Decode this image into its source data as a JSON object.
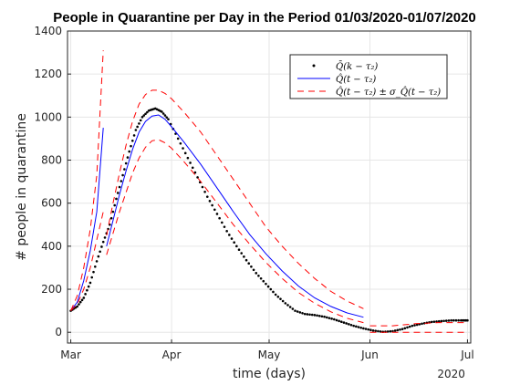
{
  "chart_data": {
    "type": "line",
    "title": "People in Quarantine per Day in the Period 01/03/2020-01/07/2020",
    "xlabel": "time (days)",
    "ylabel": "# people in quarantine",
    "x_ticks": [
      "Mar",
      "Apr",
      "May",
      "Jun",
      "Jul"
    ],
    "x_secondary_label": "2020",
    "x_range": [
      "2020-02-29",
      "2020-07-02"
    ],
    "ylim": [
      -50,
      1400
    ],
    "y_ticks": [
      0,
      200,
      400,
      600,
      800,
      1000,
      1200,
      1400
    ],
    "grid": true,
    "legend_position": "top-right",
    "legend": [
      "Q̄(k − τ₂)",
      "Q̂(t − τ₂)",
      "Q̂(t − τ₂) ± σ_Q̂(t − τ₂)"
    ],
    "series": [
      {
        "style": "dotted-black",
        "x": [
          "2020-03-01",
          "2020-03-03",
          "2020-03-05",
          "2020-03-07",
          "2020-03-09",
          "2020-03-11",
          "2020-03-13",
          "2020-03-15",
          "2020-03-17",
          "2020-03-19",
          "2020-03-21",
          "2020-03-23",
          "2020-03-25",
          "2020-03-27",
          "2020-03-29",
          "2020-03-31",
          "2020-04-03",
          "2020-04-06",
          "2020-04-09",
          "2020-04-12",
          "2020-04-15",
          "2020-04-18",
          "2020-04-21",
          "2020-04-24",
          "2020-04-27",
          "2020-04-30",
          "2020-05-03",
          "2020-05-06",
          "2020-05-09",
          "2020-05-12",
          "2020-05-15",
          "2020-05-18",
          "2020-05-21",
          "2020-05-24",
          "2020-05-27",
          "2020-05-30",
          "2020-06-02",
          "2020-06-05",
          "2020-06-08",
          "2020-06-11",
          "2020-06-14",
          "2020-06-17",
          "2020-06-20",
          "2020-06-23",
          "2020-06-26",
          "2020-06-29",
          "2020-07-01"
        ],
        "y": [
          100,
          120,
          160,
          230,
          330,
          420,
          500,
          620,
          730,
          840,
          940,
          1000,
          1030,
          1040,
          1025,
          990,
          900,
          810,
          720,
          630,
          550,
          470,
          400,
          335,
          275,
          225,
          175,
          135,
          100,
          85,
          80,
          72,
          60,
          45,
          30,
          18,
          8,
          2,
          5,
          15,
          30,
          40,
          48,
          52,
          55,
          55,
          55
        ]
      },
      {
        "style": "solid-blue",
        "segments": [
          {
            "x": [
              "2020-03-01",
              "2020-03-03",
              "2020-03-05",
              "2020-03-07",
              "2020-03-09",
              "2020-03-11"
            ],
            "y": [
              100,
              140,
              240,
              380,
              560,
              950
            ]
          },
          {
            "x": [
              "2020-03-12",
              "2020-03-14",
              "2020-03-16",
              "2020-03-18",
              "2020-03-20",
              "2020-03-22",
              "2020-03-24",
              "2020-03-26",
              "2020-03-28",
              "2020-03-30",
              "2020-04-01",
              "2020-04-05",
              "2020-04-10",
              "2020-04-15",
              "2020-04-20",
              "2020-04-25",
              "2020-04-30",
              "2020-05-05",
              "2020-05-10",
              "2020-05-15",
              "2020-05-20",
              "2020-05-25",
              "2020-05-30"
            ],
            "y": [
              400,
              520,
              640,
              750,
              850,
              930,
              980,
              1005,
              1010,
              990,
              955,
              880,
              780,
              670,
              560,
              455,
              365,
              285,
              215,
              160,
              120,
              90,
              70
            ]
          }
        ]
      },
      {
        "style": "dashed-red-upper",
        "segments": [
          {
            "x": [
              "2020-03-01",
              "2020-03-03",
              "2020-03-05",
              "2020-03-07",
              "2020-03-09",
              "2020-03-11"
            ],
            "y": [
              100,
              170,
              300,
              480,
              730,
              1310
            ]
          },
          {
            "x": [
              "2020-03-12",
              "2020-03-14",
              "2020-03-16",
              "2020-03-18",
              "2020-03-20",
              "2020-03-22",
              "2020-03-24",
              "2020-03-26",
              "2020-03-28",
              "2020-03-30",
              "2020-04-01",
              "2020-04-05",
              "2020-04-10",
              "2020-04-15",
              "2020-04-20",
              "2020-04-25",
              "2020-04-30",
              "2020-05-05",
              "2020-05-10",
              "2020-05-15",
              "2020-05-20",
              "2020-05-25",
              "2020-05-30"
            ],
            "y": [
              450,
              600,
              740,
              870,
              980,
              1060,
              1105,
              1125,
              1125,
              1110,
              1085,
              1020,
              930,
              820,
              710,
              600,
              490,
              400,
              320,
              250,
              190,
              145,
              110
            ]
          },
          {
            "x": [
              "2020-06-01",
              "2020-06-08",
              "2020-06-15",
              "2020-06-22",
              "2020-07-01"
            ],
            "y": [
              30,
              30,
              40,
              45,
              45
            ]
          }
        ]
      },
      {
        "style": "dashed-red-lower",
        "segments": [
          {
            "x": [
              "2020-03-01",
              "2020-03-03",
              "2020-03-05",
              "2020-03-07",
              "2020-03-09",
              "2020-03-11"
            ],
            "y": [
              100,
              130,
              200,
              300,
              430,
              560
            ]
          },
          {
            "x": [
              "2020-03-12",
              "2020-03-14",
              "2020-03-16",
              "2020-03-18",
              "2020-03-20",
              "2020-03-22",
              "2020-03-24",
              "2020-03-26",
              "2020-03-28",
              "2020-03-30",
              "2020-04-01",
              "2020-04-05",
              "2020-04-10",
              "2020-04-15",
              "2020-04-20",
              "2020-04-25",
              "2020-04-30",
              "2020-05-05",
              "2020-05-10",
              "2020-05-15",
              "2020-05-20",
              "2020-05-25",
              "2020-05-30"
            ],
            "y": [
              360,
              460,
              560,
              650,
              740,
              810,
              860,
              890,
              895,
              880,
              855,
              790,
              700,
              600,
              500,
              410,
              325,
              250,
              185,
              135,
              95,
              65,
              45
            ]
          },
          {
            "x": [
              "2020-06-01",
              "2020-06-08",
              "2020-06-15",
              "2020-06-22",
              "2020-07-01"
            ],
            "y": [
              0,
              0,
              0,
              0,
              0
            ]
          }
        ]
      }
    ]
  }
}
